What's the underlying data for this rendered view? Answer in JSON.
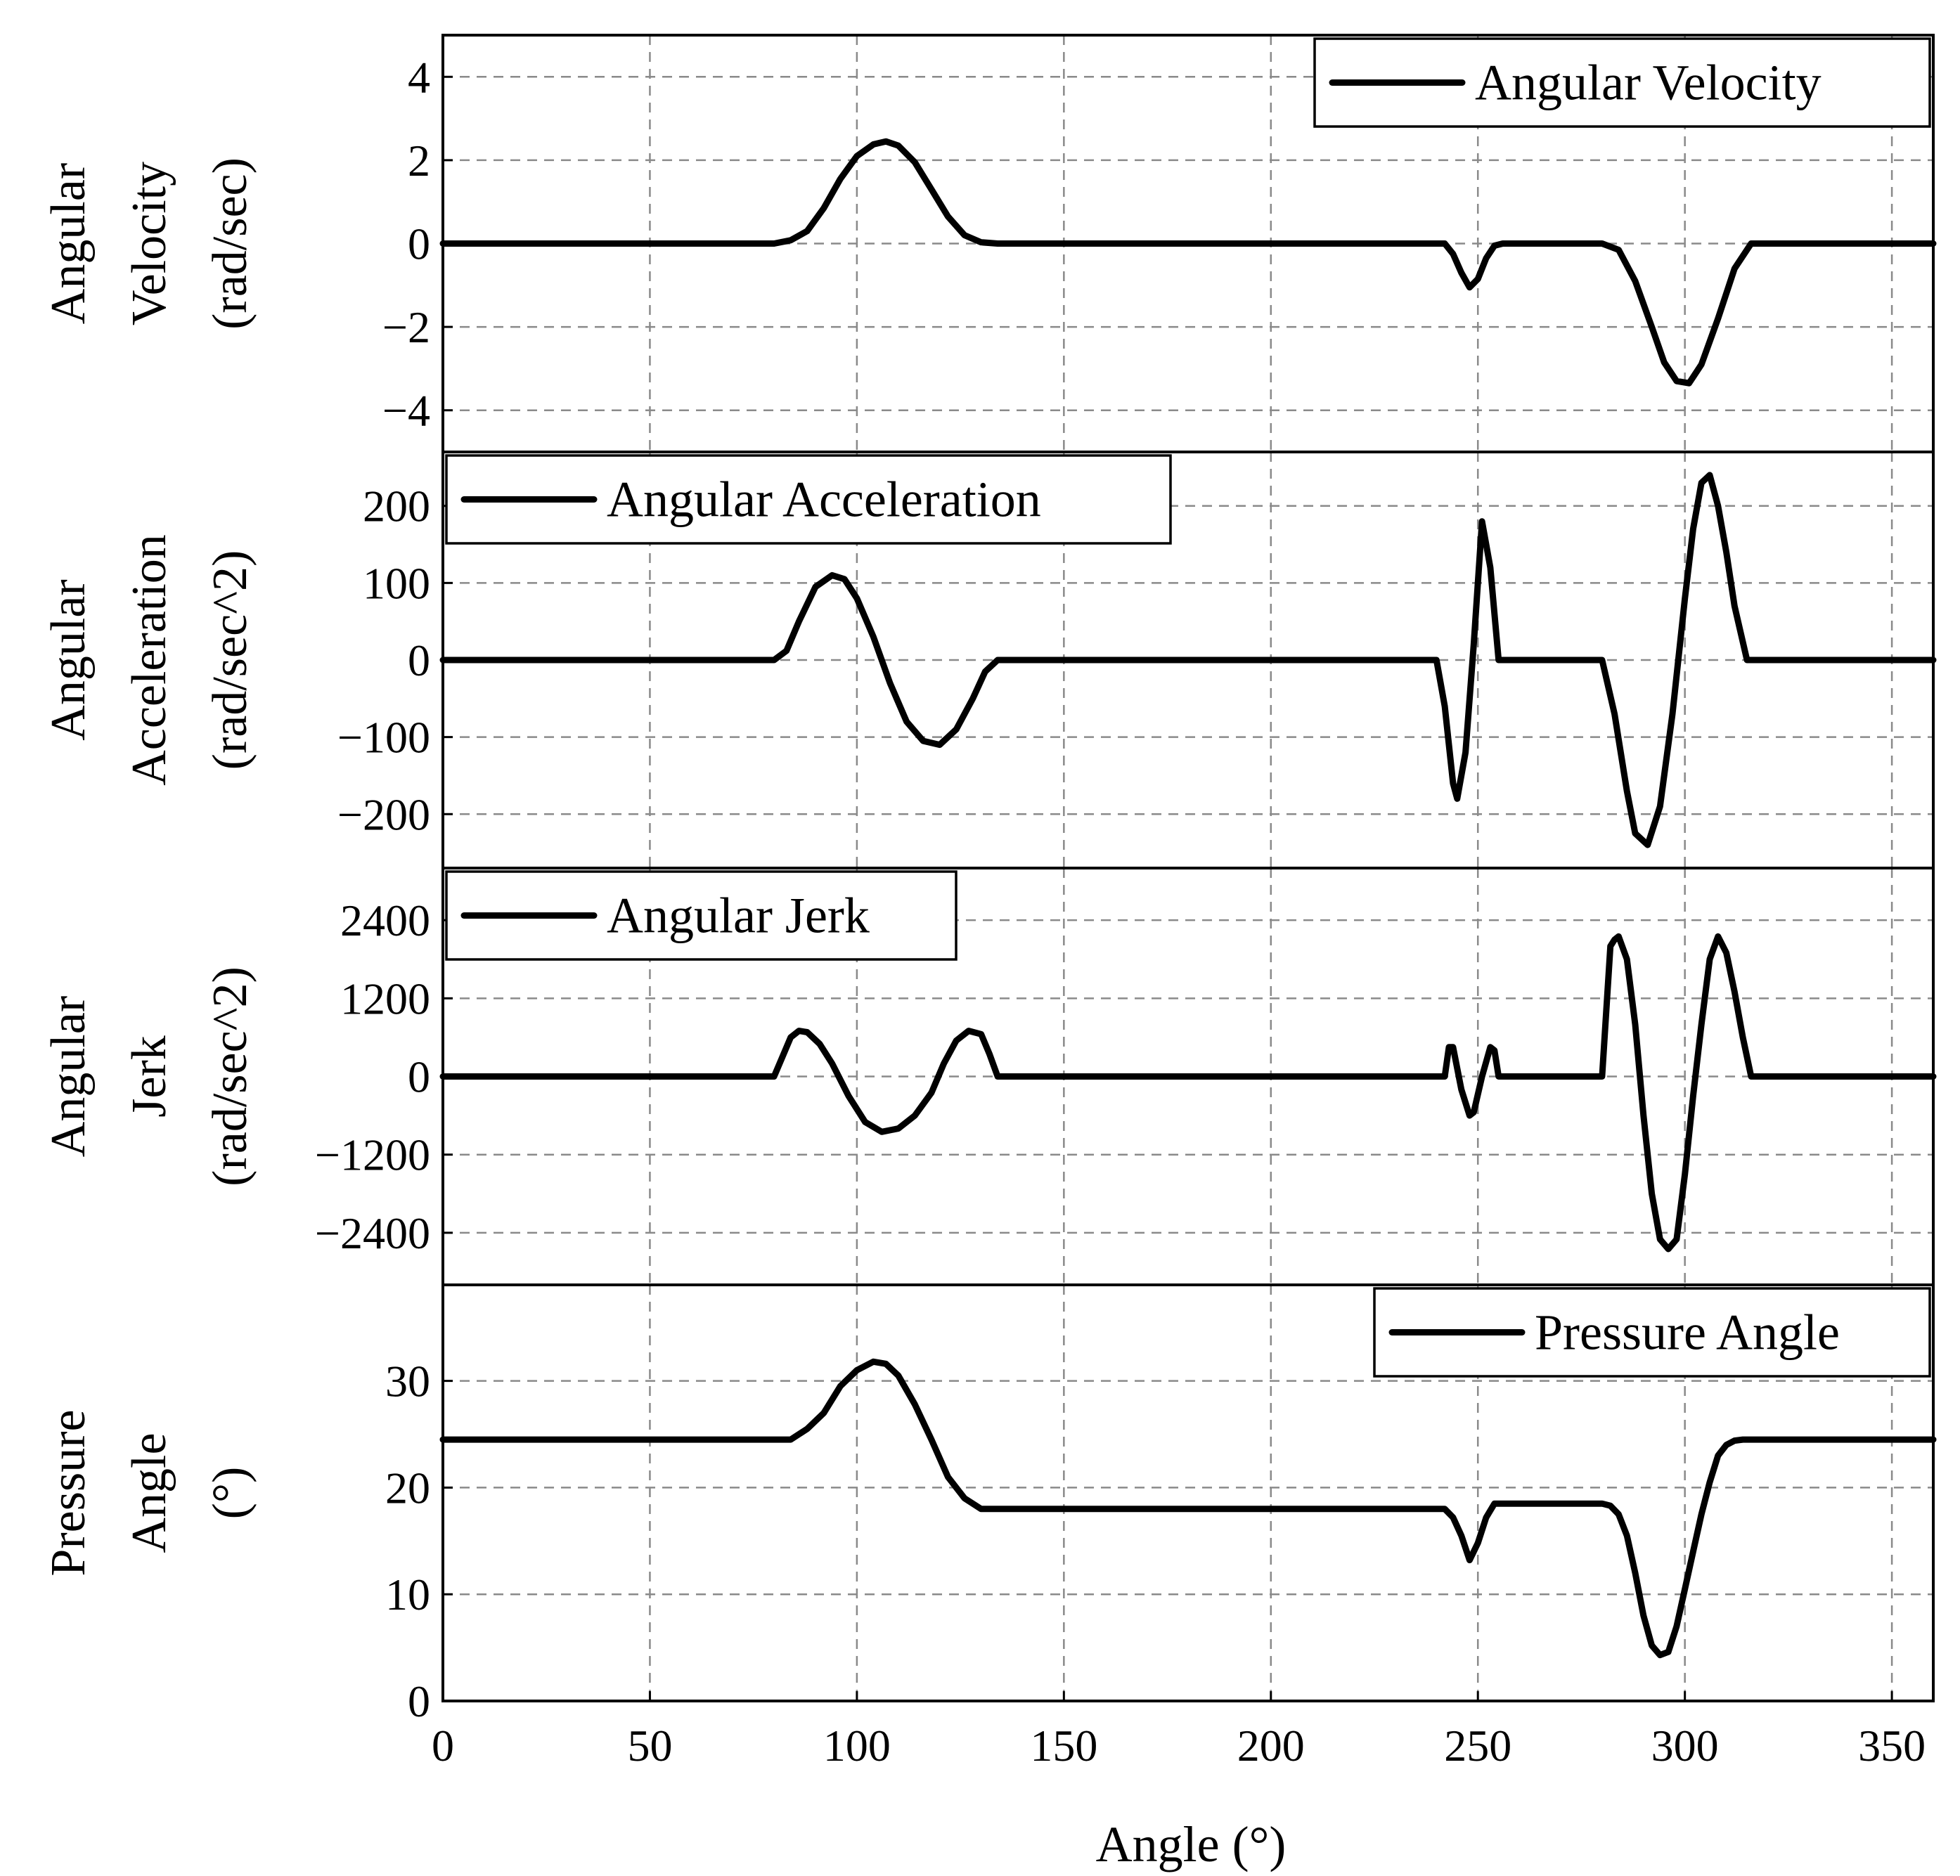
{
  "figure": {
    "xlabel": "Angle (°)"
  },
  "chart_data": [
    {
      "type": "line",
      "title": "",
      "xlabel": "Angle (°)",
      "ylabel_lines": [
        "Angular",
        "Velocity",
        "(rad/sec)"
      ],
      "legend": "Angular Velocity",
      "legend_position": "top-right",
      "xlim": [
        0,
        360
      ],
      "ylim": [
        -5,
        5
      ],
      "yticks": [
        -4,
        -2,
        0,
        2,
        4
      ],
      "ytick_labels": [
        "−4",
        "−2",
        "0",
        "2",
        "4"
      ],
      "grid": true,
      "series": [
        {
          "name": "Angular Velocity",
          "x": [
            0,
            80,
            84,
            88,
            92,
            96,
            100,
            104,
            107,
            110,
            114,
            118,
            122,
            126,
            130,
            134,
            242,
            244,
            246,
            248,
            250,
            252,
            254,
            256,
            280,
            284,
            288,
            292,
            295,
            298,
            301,
            304,
            308,
            312,
            316,
            360
          ],
          "y": [
            0,
            0,
            0.08,
            0.3,
            0.85,
            1.55,
            2.1,
            2.38,
            2.45,
            2.35,
            1.95,
            1.3,
            0.65,
            0.2,
            0.03,
            0,
            0,
            -0.25,
            -0.7,
            -1.05,
            -0.85,
            -0.35,
            -0.05,
            0,
            0,
            -0.15,
            -0.9,
            -2.0,
            -2.85,
            -3.3,
            -3.35,
            -2.9,
            -1.8,
            -0.6,
            0,
            0
          ]
        }
      ]
    },
    {
      "type": "line",
      "title": "",
      "xlabel": "Angle (°)",
      "ylabel_lines": [
        "Angular",
        "Acceleration",
        "(rad/sec^2)"
      ],
      "legend": "Angular Acceleration",
      "legend_position": "top-left",
      "xlim": [
        0,
        360
      ],
      "ylim": [
        -270,
        270
      ],
      "yticks": [
        -200,
        -100,
        0,
        100,
        200
      ],
      "ytick_labels": [
        "−200",
        "−100",
        "0",
        "100",
        "200"
      ],
      "grid": true,
      "series": [
        {
          "name": "Angular Acceleration",
          "x": [
            0,
            80,
            83,
            86,
            90,
            94,
            97,
            100,
            104,
            108,
            112,
            116,
            120,
            124,
            128,
            131,
            134,
            240,
            242,
            244,
            245,
            247,
            249,
            251,
            253,
            255,
            280,
            283,
            286,
            288,
            291,
            294,
            297,
            300,
            302,
            304,
            306,
            308,
            310,
            312,
            315,
            360
          ],
          "y": [
            0,
            0,
            12,
            50,
            95,
            110,
            105,
            80,
            30,
            -30,
            -80,
            -105,
            -110,
            -90,
            -50,
            -15,
            0,
            0,
            -60,
            -160,
            -180,
            -120,
            20,
            180,
            120,
            0,
            0,
            -70,
            -170,
            -225,
            -240,
            -190,
            -70,
            80,
            170,
            230,
            240,
            200,
            140,
            70,
            0,
            0
          ]
        }
      ]
    },
    {
      "type": "line",
      "title": "",
      "xlabel": "Angle (°)",
      "ylabel_lines": [
        "Angular",
        "Jerk",
        "(rad/sec^2)"
      ],
      "legend": "Angular Jerk",
      "legend_position": "top-left",
      "xlim": [
        0,
        360
      ],
      "ylim": [
        -3200,
        3200
      ],
      "yticks": [
        -2400,
        -1200,
        0,
        1200,
        2400
      ],
      "ytick_labels": [
        "−2400",
        "−1200",
        "0",
        "1200",
        "2400"
      ],
      "grid": true,
      "series": [
        {
          "name": "Angular Jerk",
          "x": [
            0,
            80,
            82,
            84,
            86,
            88,
            91,
            94,
            98,
            102,
            106,
            110,
            114,
            118,
            121,
            124,
            127,
            130,
            132,
            134,
            242,
            243,
            244,
            246,
            248,
            249,
            251,
            253,
            254,
            255,
            280,
            281,
            282,
            283,
            284,
            286,
            288,
            290,
            292,
            294,
            296,
            298,
            300,
            302,
            304,
            306,
            308,
            310,
            312,
            314,
            316,
            360
          ],
          "y": [
            0,
            0,
            300,
            600,
            700,
            680,
            500,
            200,
            -300,
            -700,
            -850,
            -800,
            -600,
            -250,
            200,
            550,
            700,
            650,
            350,
            0,
            0,
            450,
            450,
            -200,
            -600,
            -550,
            0,
            450,
            400,
            0,
            0,
            1000,
            2000,
            2100,
            2150,
            1800,
            800,
            -600,
            -1800,
            -2500,
            -2650,
            -2500,
            -1500,
            -300,
            800,
            1800,
            2150,
            1900,
            1300,
            600,
            0,
            0
          ]
        }
      ]
    },
    {
      "type": "line",
      "title": "",
      "xlabel": "Angle (°)",
      "ylabel_lines": [
        "Pressure",
        "Angle",
        "(°)"
      ],
      "legend": "Pressure Angle",
      "legend_position": "top-right",
      "xlim": [
        0,
        360
      ],
      "ylim": [
        0,
        39
      ],
      "yticks": [
        0,
        10,
        20,
        30
      ],
      "ytick_labels": [
        "0",
        "10",
        "20",
        "30"
      ],
      "grid": true,
      "xticks": [
        0,
        50,
        100,
        150,
        200,
        250,
        300,
        350
      ],
      "xtick_labels": [
        "0",
        "50",
        "100",
        "150",
        "200",
        "250",
        "300",
        "350"
      ],
      "series": [
        {
          "name": "Pressure Angle",
          "x": [
            0,
            84,
            86,
            88,
            92,
            96,
            100,
            104,
            107,
            110,
            114,
            118,
            122,
            126,
            130,
            132,
            242,
            244,
            246,
            248,
            250,
            252,
            254,
            256,
            280,
            282,
            284,
            286,
            288,
            290,
            292,
            294,
            296,
            298,
            300,
            302,
            304,
            306,
            308,
            310,
            312,
            314,
            316,
            360
          ],
          "y": [
            24.5,
            24.5,
            25,
            25.5,
            27,
            29.5,
            31,
            31.8,
            31.6,
            30.5,
            27.8,
            24.5,
            21,
            19,
            18,
            18,
            18,
            17.2,
            15.5,
            13.2,
            14.8,
            17.2,
            18.5,
            18.5,
            18.5,
            18.3,
            17.5,
            15.5,
            12,
            8,
            5.2,
            4.3,
            4.6,
            7,
            10.5,
            14,
            17.5,
            20.5,
            23,
            24,
            24.4,
            24.5,
            24.5,
            24.5
          ]
        }
      ]
    }
  ]
}
